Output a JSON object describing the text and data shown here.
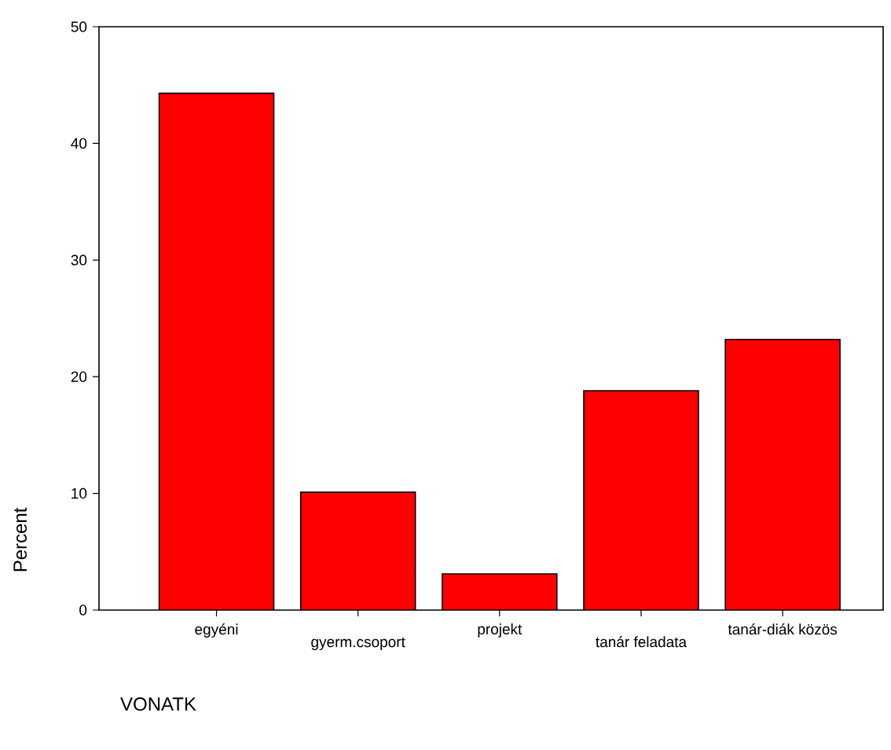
{
  "chart_data": {
    "type": "bar",
    "xlabel": "VONATK",
    "ylabel": "Percent",
    "categories": [
      "egyéni",
      "gyerm.csoport",
      "projekt",
      "tanár feladata",
      "tanár-diák közös"
    ],
    "values": [
      44.3,
      10.1,
      3.1,
      18.8,
      23.2
    ],
    "color": "#ff0000",
    "ylim": [
      0,
      50
    ],
    "yticks": [
      0,
      10,
      20,
      30,
      40,
      50
    ]
  }
}
